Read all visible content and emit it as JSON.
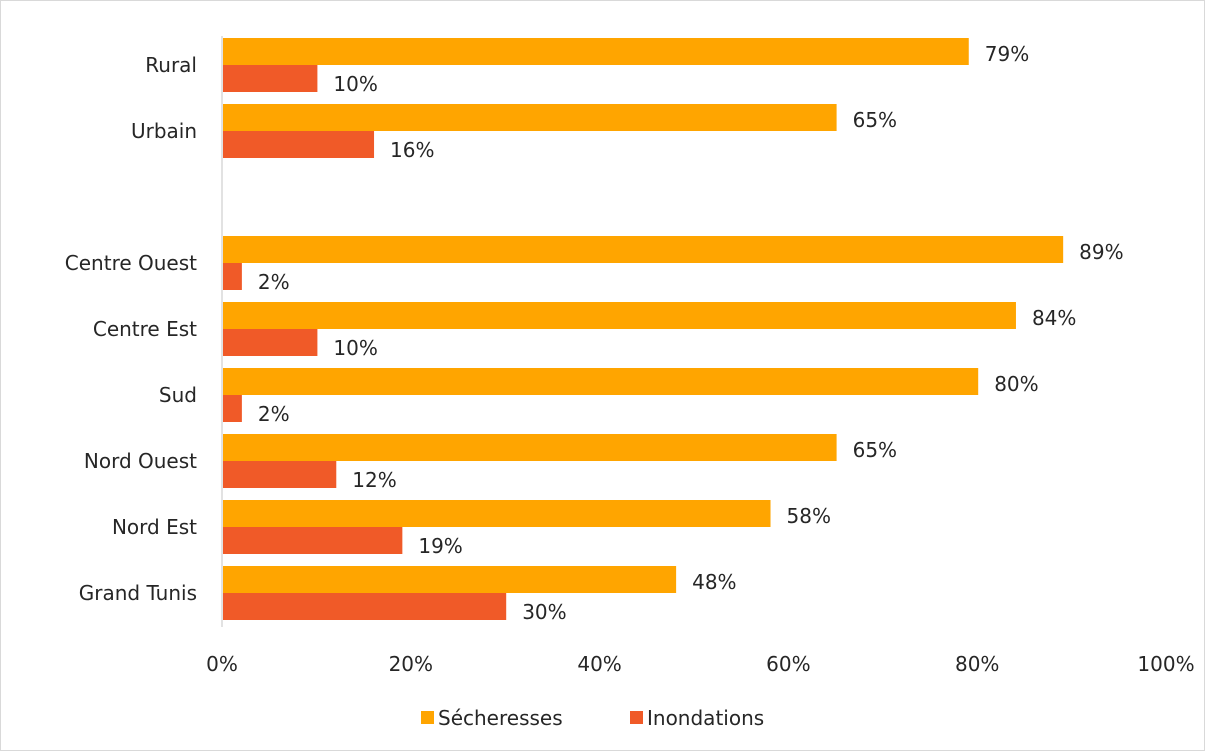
{
  "chart_data": {
    "type": "bar",
    "orientation": "horizontal",
    "categories": [
      "Rural",
      "Urbain",
      "",
      "Centre Ouest",
      "Centre Est",
      "Sud",
      "Nord Ouest",
      "Nord Est",
      "Grand Tunis"
    ],
    "series": [
      {
        "name": "Sécheresses",
        "color": "#FFA500",
        "values": [
          79,
          65,
          null,
          89,
          84,
          80,
          65,
          58,
          48
        ]
      },
      {
        "name": "Inondations",
        "color": "#F05A28",
        "values": [
          10,
          16,
          null,
          2,
          10,
          2,
          12,
          19,
          30
        ]
      }
    ],
    "value_suffix": "%",
    "xlim": [
      0,
      100
    ],
    "xticks": [
      "0%",
      "20%",
      "40%",
      "60%",
      "80%",
      "100%"
    ],
    "grid": false,
    "legend_position": "bottom"
  }
}
